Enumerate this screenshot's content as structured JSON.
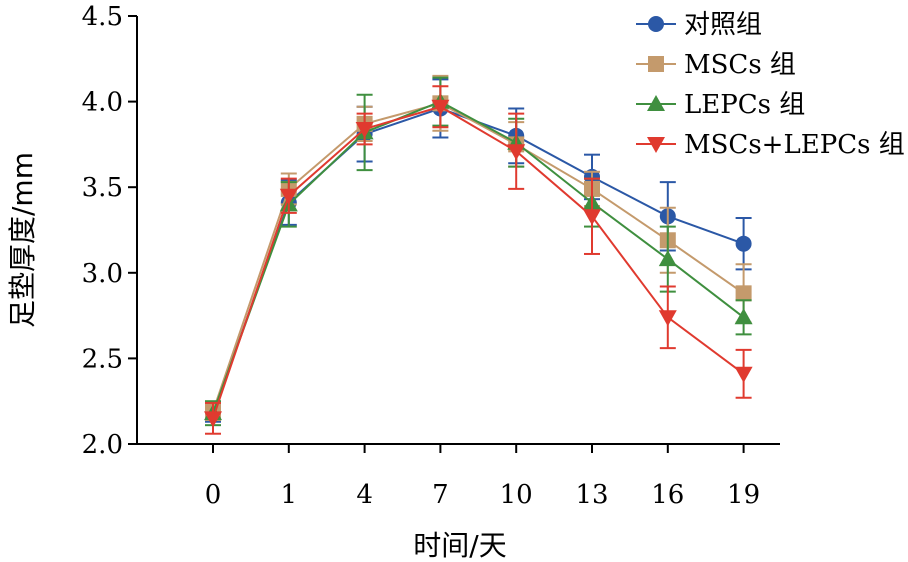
{
  "chart_data": {
    "type": "line",
    "xlabel": "时间/天",
    "ylabel": "足垫厚度/mm",
    "categories": [
      "0",
      "1",
      "4",
      "7",
      "10",
      "13",
      "16",
      "19"
    ],
    "ylim": [
      2.0,
      4.5
    ],
    "yticks": [
      "2.0",
      "2.5",
      "3.0",
      "3.5",
      "4.0",
      "4.5"
    ],
    "yticks_values": [
      2.0,
      2.5,
      3.0,
      3.5,
      4.0,
      4.5
    ],
    "grid": false,
    "legend_position": "top-right",
    "series": [
      {
        "name": "对照组",
        "color": "#2b58a6",
        "marker": "circle",
        "values": [
          2.18,
          3.41,
          3.81,
          3.96,
          3.8,
          3.56,
          3.33,
          3.17
        ],
        "errors": [
          0.05,
          0.13,
          0.16,
          0.17,
          0.16,
          0.13,
          0.2,
          0.15
        ]
      },
      {
        "name": "MSCs 组",
        "color": "#c49a6c",
        "marker": "square",
        "values": [
          2.19,
          3.49,
          3.87,
          3.99,
          3.75,
          3.49,
          3.19,
          2.88
        ],
        "errors": [
          0.05,
          0.09,
          0.1,
          0.16,
          0.13,
          0.1,
          0.19,
          0.17
        ]
      },
      {
        "name": "LEPCs 组",
        "color": "#3f8f3f",
        "marker": "triangle-up",
        "values": [
          2.18,
          3.4,
          3.82,
          4.0,
          3.76,
          3.41,
          3.08,
          2.74
        ],
        "errors": [
          0.07,
          0.13,
          0.22,
          0.14,
          0.14,
          0.14,
          0.19,
          0.1
        ]
      },
      {
        "name": "MSCs+LEPCs 组",
        "color": "#e03a2f",
        "marker": "triangle-down",
        "values": [
          2.15,
          3.45,
          3.84,
          3.97,
          3.71,
          3.33,
          2.74,
          2.41
        ],
        "errors": [
          0.09,
          0.1,
          0.09,
          0.12,
          0.22,
          0.22,
          0.18,
          0.14
        ]
      }
    ]
  }
}
